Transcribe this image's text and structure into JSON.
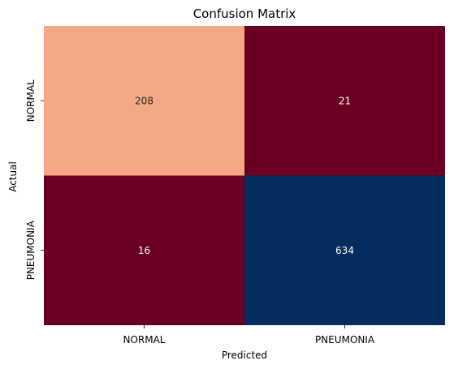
{
  "chart_data": {
    "type": "heatmap",
    "title": "Confusion Matrix",
    "xlabel": "Predicted",
    "ylabel": "Actual",
    "x_categories": [
      "NORMAL",
      "PNEUMONIA"
    ],
    "y_categories": [
      "NORMAL",
      "PNEUMONIA"
    ],
    "values": [
      [
        208,
        21
      ],
      [
        16,
        634
      ]
    ],
    "colormap": "RdBu",
    "colorbar": false,
    "cell_colors": [
      [
        "#f4a886",
        "#6a0021"
      ],
      [
        "#6a0021",
        "#052c5f"
      ]
    ],
    "text_colors": [
      [
        "#262626",
        "#ffffff"
      ],
      [
        "#ffffff",
        "#ffffff"
      ]
    ]
  }
}
